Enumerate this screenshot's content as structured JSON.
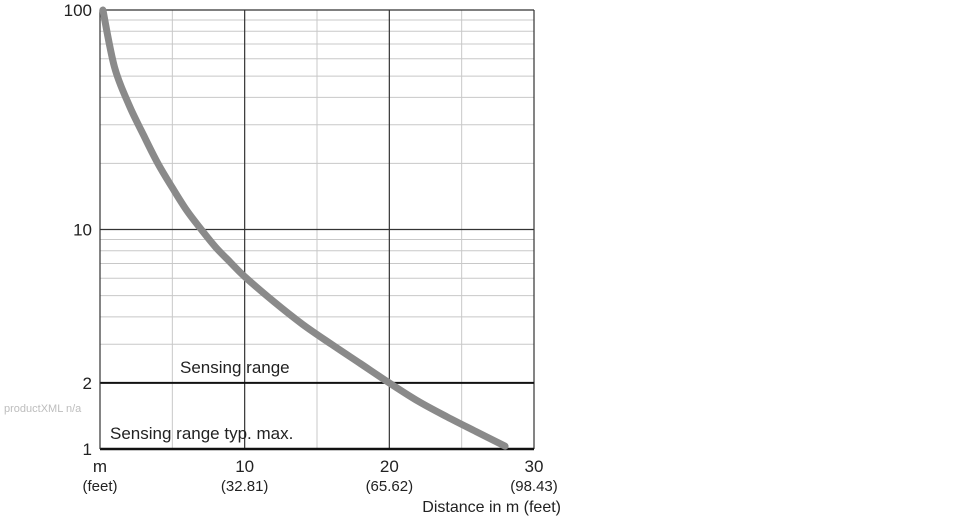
{
  "chart_data": {
    "type": "line",
    "title": "",
    "xlabel": "Distance in m (feet)",
    "ylabel": "",
    "y_scale": "log",
    "xlim": [
      0,
      30
    ],
    "ylim": [
      1,
      100
    ],
    "grid": true,
    "x_ticks": [
      {
        "value": 0,
        "label": "m",
        "sublabel": "(feet)"
      },
      {
        "value": 10,
        "label": "10",
        "sublabel": "(32.81)"
      },
      {
        "value": 20,
        "label": "20",
        "sublabel": "(65.62)"
      },
      {
        "value": 30,
        "label": "30",
        "sublabel": "(98.43)"
      }
    ],
    "y_ticks": [
      {
        "value": 1,
        "label": "1"
      },
      {
        "value": 2,
        "label": "2"
      },
      {
        "value": 10,
        "label": "10"
      },
      {
        "value": 100,
        "label": "100"
      }
    ],
    "series": [
      {
        "color": "#8a8a8a",
        "x": [
          0.2,
          1,
          2,
          3,
          4,
          5,
          6,
          7,
          8,
          9,
          10,
          12,
          14,
          16,
          18,
          20,
          22,
          24,
          26,
          28
        ],
        "y": [
          100,
          55,
          37,
          27,
          20,
          15.5,
          12.2,
          10,
          8.3,
          7.1,
          6.1,
          4.7,
          3.7,
          3.0,
          2.45,
          2.0,
          1.65,
          1.4,
          1.2,
          1.03
        ]
      }
    ],
    "annotations": [
      {
        "text": "Sensing range",
        "y": 2
      },
      {
        "text": "Sensing range typ. max.",
        "y": 1
      }
    ]
  },
  "watermark": "productXML n/a"
}
